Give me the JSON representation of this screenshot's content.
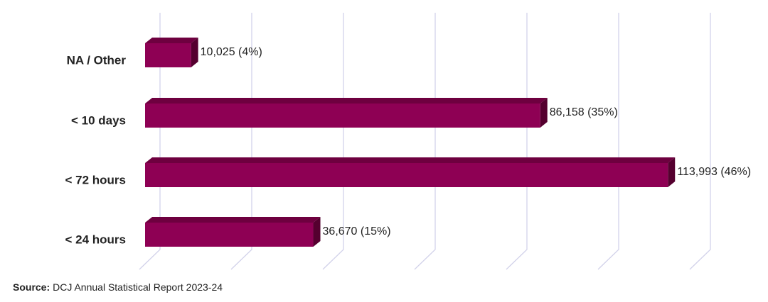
{
  "chart_data": {
    "type": "bar3d-horizontal",
    "categories": [
      "NA / Other",
      "< 10 days",
      "< 72 hours",
      "< 24 hours"
    ],
    "values": [
      10025,
      86158,
      113993,
      36670
    ],
    "value_labels": [
      "10,025 (4%)",
      "86,158 (35%)",
      "113,993 (46%)",
      "36,670 (15%)"
    ],
    "color": "#8e0054",
    "xlim": [
      0,
      120000
    ],
    "xticks": [
      0,
      20000,
      40000,
      60000,
      80000,
      100000,
      120000
    ],
    "grid": true,
    "source": {
      "label": "Source:",
      "text": "DCJ Annual Statistical Report 2023-24"
    }
  }
}
